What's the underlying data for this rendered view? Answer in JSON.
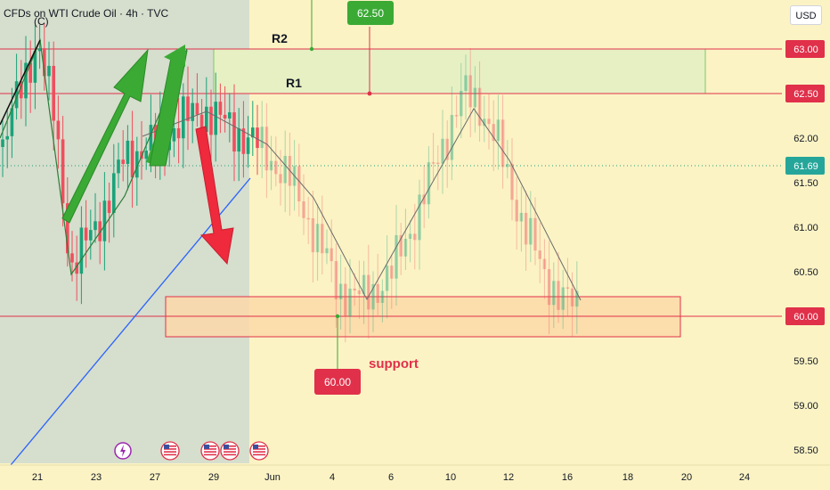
{
  "header": {
    "title": "CFDs on WTI Crude Oil · 4h · TVC",
    "currency": "USD"
  },
  "colors": {
    "background": "#fbf3c4",
    "shaded_region": "#cfd9cf",
    "resistance_zone": "#e7f0c3",
    "support_zone": "#fcd8a8",
    "level_line": "#e0304a",
    "bull_candle": "#1aa37a",
    "bear_candle": "#ef4f5e",
    "up_arrow": "#3aaa35",
    "down_arrow": "#ef2a3d",
    "trendline": "#2962ff",
    "price_badge": "#26a69a"
  },
  "chart_data": {
    "type": "candlestick",
    "price_axis": {
      "ticks": [
        "63.00",
        "62.50",
        "62.00",
        "61.69",
        "61.50",
        "61.00",
        "60.50",
        "60.00",
        "59.50",
        "59.00",
        "58.50"
      ],
      "ylim": [
        58.4,
        63.5
      ]
    },
    "time_axis": {
      "ticks": [
        "21",
        "23",
        "27",
        "29",
        "Jun",
        "4",
        "6",
        "10",
        "12",
        "16",
        "18",
        "20",
        "24"
      ]
    },
    "current_price": 61.69,
    "levels": [
      {
        "label": "R2",
        "price": 63.0
      },
      {
        "label": "R1",
        "price": 62.5
      },
      {
        "label": "support",
        "price": 60.0
      }
    ],
    "price_labels": [
      "62.50",
      "60.00"
    ],
    "support_label": "support",
    "zones": [
      {
        "name": "resistance",
        "from": 62.5,
        "to": 63.0
      },
      {
        "name": "support",
        "from": 59.77,
        "to": 60.22
      }
    ],
    "event_icons": [
      "lightning",
      "us-flag",
      "us-flag",
      "us-flag",
      "us-flag"
    ],
    "wave_label": "(C)"
  }
}
